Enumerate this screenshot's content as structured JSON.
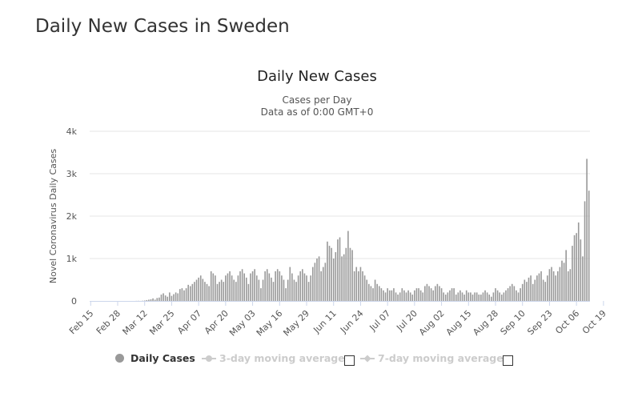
{
  "page": {
    "title": "Daily New Cases in Sweden"
  },
  "chart": {
    "title": "Daily New Cases",
    "subtitle_line1": "Cases per Day",
    "subtitle_line2": "Data as of 0:00 GMT+0"
  },
  "legend": {
    "daily": "Daily Cases",
    "ma3": "3-day moving average",
    "ma7": "7-day moving average"
  },
  "colors": {
    "bar": "#999999",
    "grid": "#e6e6e6",
    "axis": "#ccd6eb",
    "legend_hidden": "#cccccc"
  },
  "chart_data": {
    "type": "bar",
    "title": "Daily New Cases",
    "subtitle": [
      "Cases per Day",
      "Data as of 0:00 GMT+0"
    ],
    "xlabel": "",
    "ylabel": "Novel Coronavirus Daily Cases",
    "ylim": [
      0,
      4000
    ],
    "yticks": [
      "0",
      "1k",
      "2k",
      "3k",
      "4k"
    ],
    "x_tick_labels": [
      "Feb 15",
      "Feb 28",
      "Mar 12",
      "Mar 25",
      "Apr 07",
      "Apr 20",
      "May 03",
      "May 16",
      "May 29",
      "Jun 11",
      "Jun 24",
      "Jul 07",
      "Jul 20",
      "Aug 02",
      "Aug 15",
      "Aug 28",
      "Sep 10",
      "Sep 23",
      "Oct 06",
      "Oct 19"
    ],
    "start_date": "Feb 15",
    "grid": true,
    "legend_position": "bottom",
    "series": [
      {
        "name": "Daily Cases",
        "values": [
          0,
          0,
          0,
          0,
          0,
          0,
          0,
          0,
          0,
          0,
          0,
          0,
          0,
          0,
          0,
          0,
          0,
          0,
          0,
          0,
          0,
          0,
          2,
          3,
          1,
          5,
          10,
          20,
          30,
          40,
          60,
          30,
          70,
          80,
          150,
          180,
          130,
          100,
          200,
          120,
          160,
          200,
          180,
          280,
          300,
          250,
          300,
          380,
          350,
          400,
          450,
          500,
          550,
          600,
          520,
          450,
          400,
          350,
          700,
          650,
          600,
          400,
          450,
          500,
          450,
          600,
          650,
          700,
          600,
          500,
          450,
          600,
          700,
          750,
          650,
          550,
          400,
          650,
          700,
          750,
          600,
          500,
          300,
          500,
          700,
          750,
          650,
          550,
          450,
          700,
          750,
          700,
          600,
          500,
          300,
          500,
          800,
          650,
          500,
          450,
          600,
          700,
          750,
          650,
          600,
          450,
          600,
          800,
          900,
          1000,
          1050,
          700,
          800,
          900,
          1400,
          1300,
          1250,
          1000,
          1150,
          1450,
          1500,
          1050,
          1100,
          1250,
          1650,
          1250,
          1200,
          700,
          800,
          700,
          800,
          700,
          600,
          500,
          400,
          350,
          300,
          500,
          400,
          350,
          300,
          250,
          200,
          300,
          250,
          250,
          300,
          200,
          150,
          200,
          300,
          250,
          200,
          250,
          200,
          150,
          250,
          300,
          300,
          250,
          200,
          350,
          400,
          350,
          300,
          250,
          350,
          400,
          350,
          300,
          200,
          150,
          200,
          250,
          300,
          300,
          150,
          200,
          250,
          200,
          150,
          250,
          200,
          200,
          150,
          200,
          200,
          150,
          150,
          200,
          250,
          200,
          150,
          100,
          200,
          300,
          250,
          200,
          150,
          200,
          250,
          300,
          350,
          400,
          350,
          250,
          200,
          300,
          400,
          500,
          450,
          550,
          600,
          400,
          500,
          600,
          650,
          700,
          500,
          450,
          600,
          750,
          800,
          700,
          600,
          700,
          800,
          950,
          900,
          1200,
          700,
          750,
          1300,
          1550,
          1600,
          1850,
          1450,
          1050,
          2350,
          3350,
          2600
        ]
      },
      {
        "name": "3-day moving average",
        "visible": false
      },
      {
        "name": "7-day moving average",
        "visible": false
      }
    ]
  }
}
